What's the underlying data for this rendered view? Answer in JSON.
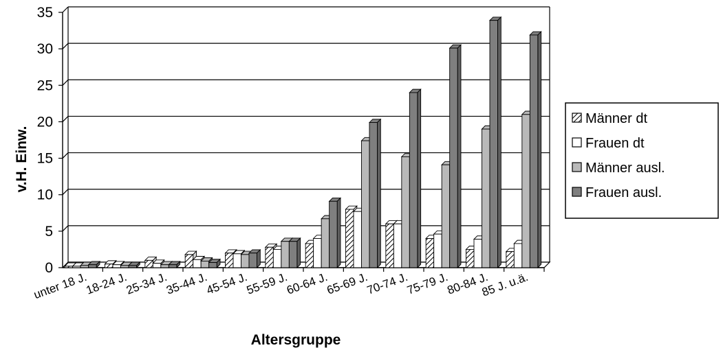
{
  "chart_data": {
    "type": "bar",
    "title": "",
    "xlabel": "Altersgruppe",
    "ylabel": "v.H. Einw.",
    "ylim": [
      0,
      35
    ],
    "yticks": [
      0,
      5,
      10,
      15,
      20,
      25,
      30,
      35
    ],
    "grid": true,
    "legend_position": "right",
    "categories": [
      "unter 18 J.",
      "18-24 J.",
      "25-34 J.",
      "35-44 J.",
      "45-54 J.",
      "55-59 J.",
      "60-64 J.",
      "65-69 J.",
      "70-74 J.",
      "75-79 J.",
      "80-84 J.",
      "85 J. u.ä."
    ],
    "series": [
      {
        "name": "Männer dt",
        "values": [
          0.2,
          0.5,
          1.0,
          1.8,
          2.0,
          2.8,
          3.3,
          8.0,
          6.0,
          4.0,
          2.5,
          2.2
        ],
        "pattern": "hatch",
        "color": "#ffffff"
      },
      {
        "name": "Frauen dt",
        "values": [
          0.2,
          0.4,
          0.6,
          1.1,
          1.9,
          2.5,
          4.0,
          7.7,
          6.0,
          4.6,
          3.9,
          3.3
        ],
        "pattern": "solid",
        "color": "#ffffff"
      },
      {
        "name": "Männer ausl.",
        "values": [
          0.3,
          0.3,
          0.4,
          0.9,
          1.8,
          3.6,
          6.7,
          17.4,
          15.2,
          14.1,
          19.0,
          21.0
        ],
        "pattern": "solid",
        "color": "#b9b9b9"
      },
      {
        "name": "Frauen ausl.",
        "values": [
          0.4,
          0.3,
          0.4,
          0.7,
          2.0,
          3.6,
          9.1,
          19.9,
          24.0,
          30.1,
          33.9,
          31.9
        ],
        "pattern": "solid",
        "color": "#7f7f7f"
      }
    ]
  }
}
